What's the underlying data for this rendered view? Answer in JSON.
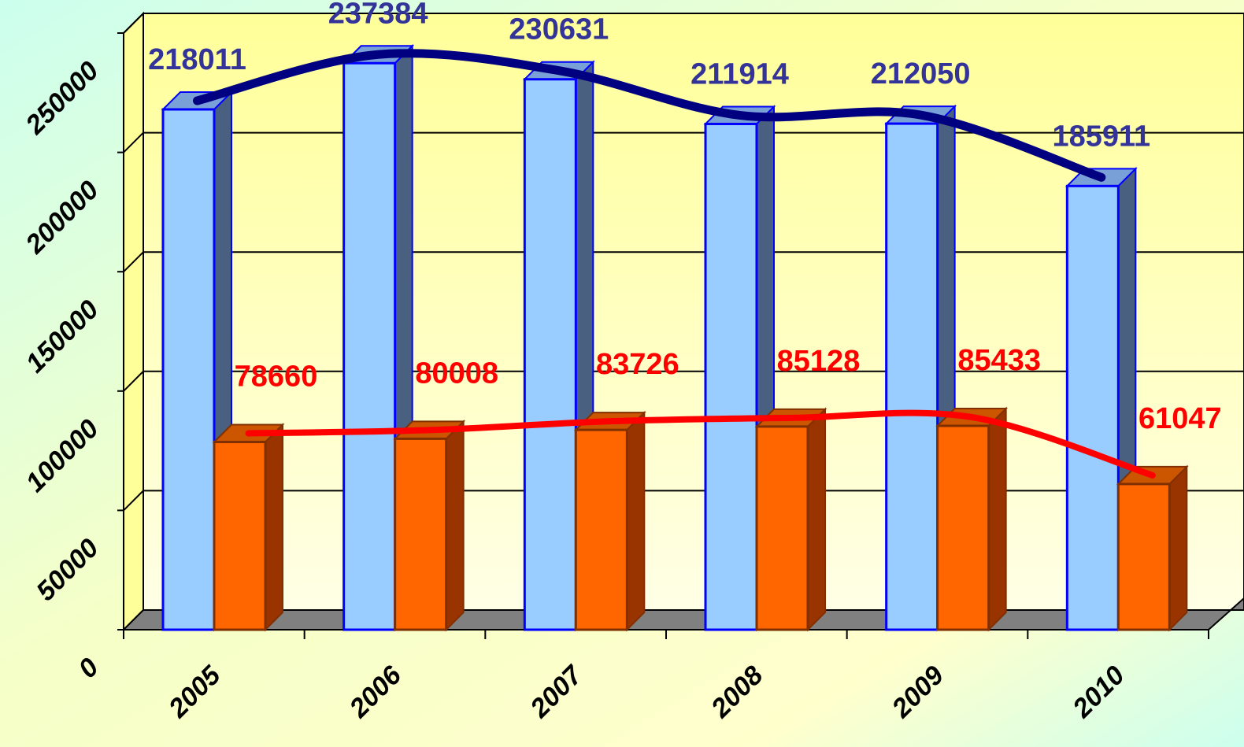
{
  "chart_data": {
    "type": "bar3d",
    "categories": [
      "2005",
      "2006",
      "2007",
      "2008",
      "2009",
      "2010"
    ],
    "series": [
      {
        "color": "#99ccff",
        "line_color": "#000080",
        "label_color": "#333399",
        "values": [
          218011,
          237384,
          230631,
          211914,
          212050,
          185911
        ]
      },
      {
        "color": "#ff6600",
        "line_color": "#ff0000",
        "label_color": "#ff0000",
        "values": [
          78660,
          80008,
          83726,
          85128,
          85433,
          61047
        ]
      }
    ],
    "ylim": [
      0,
      250000
    ],
    "yticks": [
      0,
      50000,
      100000,
      150000,
      200000,
      250000
    ],
    "grid": true
  }
}
